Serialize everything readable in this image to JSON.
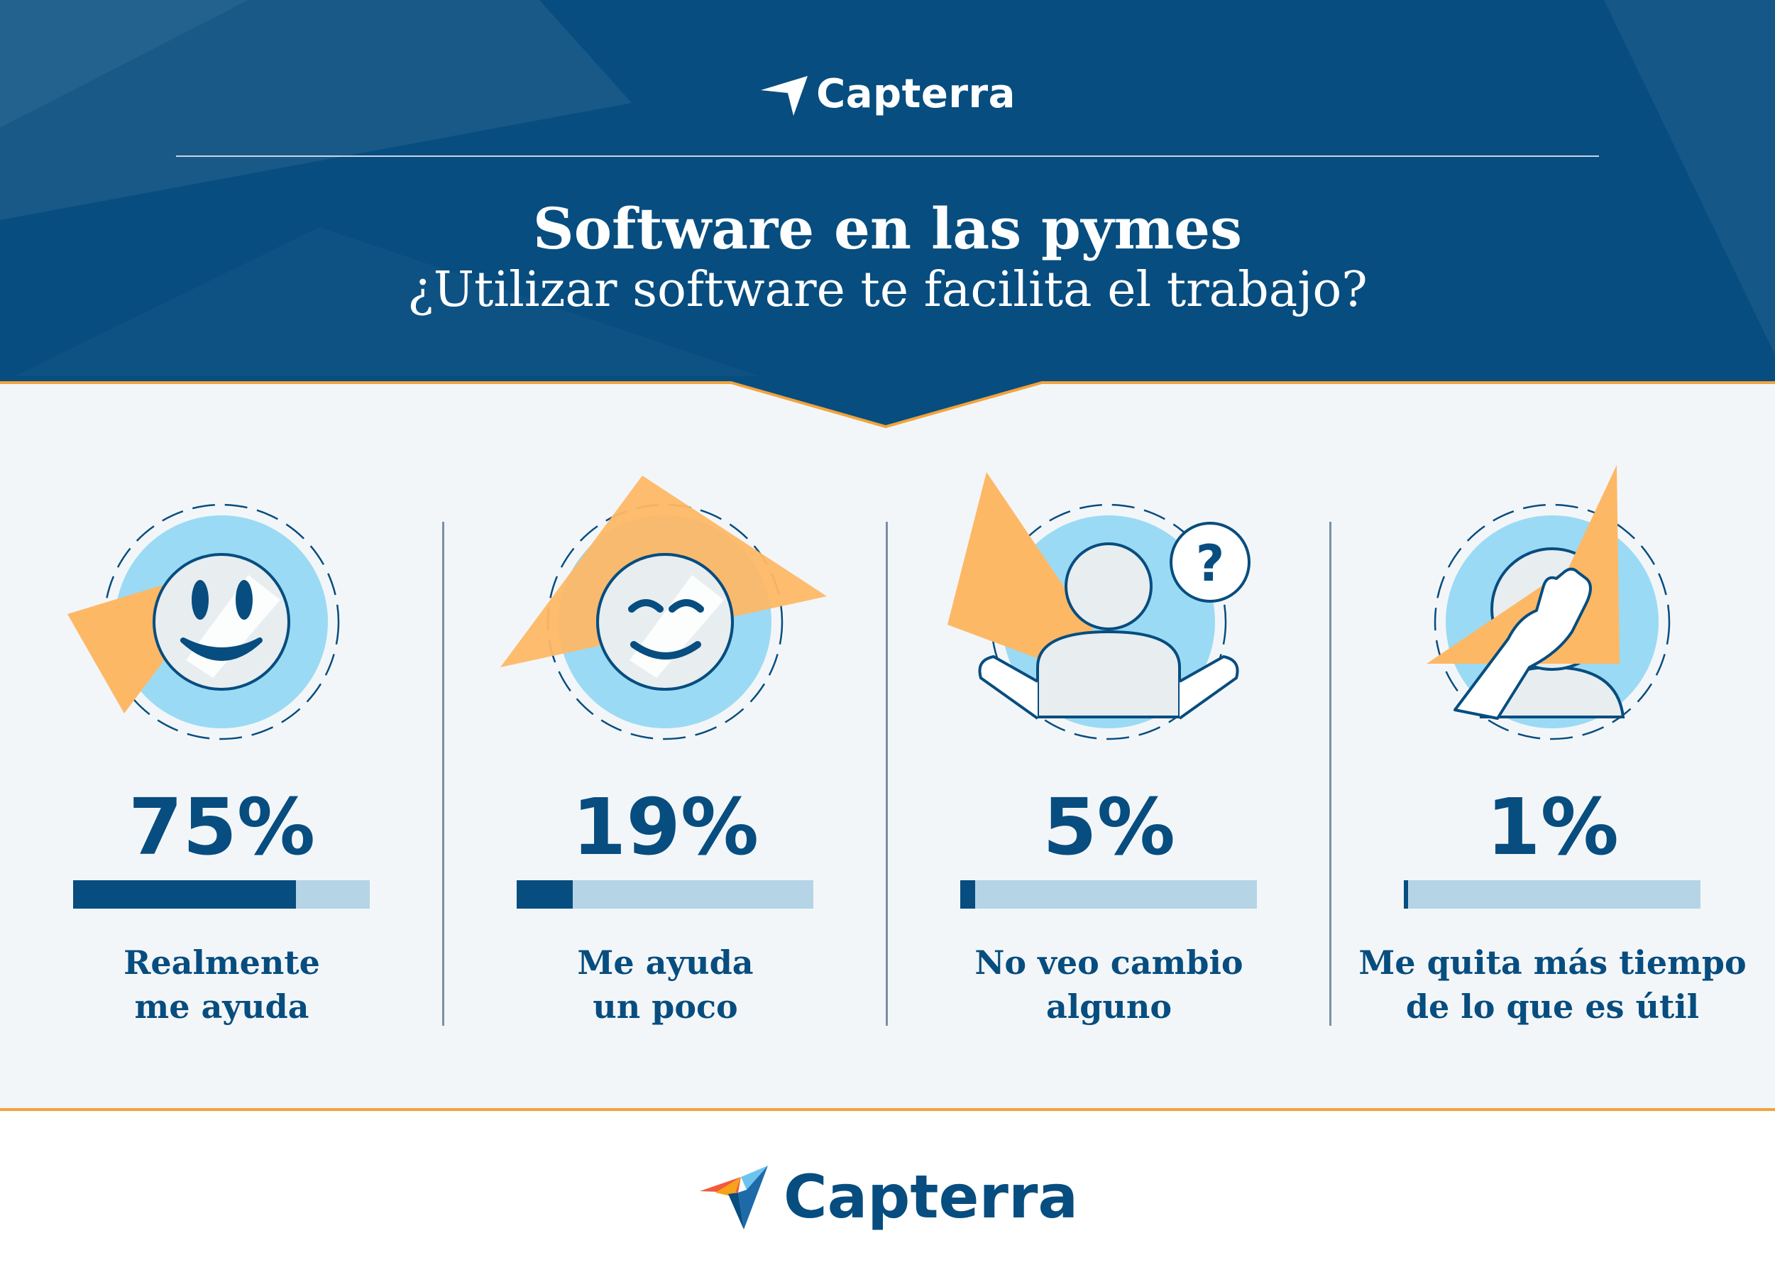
{
  "header": {
    "brand": "Capterra",
    "title": "Software en las pymes",
    "subtitle": "¿Utilizar software te facilita el trabajo?"
  },
  "footer": {
    "brand": "Capterra"
  },
  "colors": {
    "navy": "#074d7f",
    "orange": "#f1a33c",
    "light_orange": "#fdb866",
    "light_blue": "#9bdaf4",
    "track": "#b5d4e6",
    "face": "#e8edf0"
  },
  "chart_data": {
    "type": "bar",
    "title": "Software en las pymes",
    "subtitle": "¿Utilizar software te facilita el trabajo?",
    "categories": [
      "Realmente me ayuda",
      "Me ayuda un poco",
      "No veo cambio alguno",
      "Me quita más tiempo de lo que es útil"
    ],
    "values": [
      75,
      19,
      5,
      1
    ],
    "value_labels": [
      "75%",
      "19%",
      "5%",
      "1%"
    ],
    "label_lines": [
      [
        "Realmente",
        "me ayuda"
      ],
      [
        "Me ayuda",
        "un poco"
      ],
      [
        "No veo cambio",
        "alguno"
      ],
      [
        "Me quita más tiempo",
        "de lo que es útil"
      ]
    ],
    "icons": [
      "happy-face-icon",
      "content-face-icon",
      "confused-person-icon",
      "facepalm-icon"
    ],
    "ylim": [
      0,
      100
    ],
    "orientation": "horizontal-progress"
  }
}
